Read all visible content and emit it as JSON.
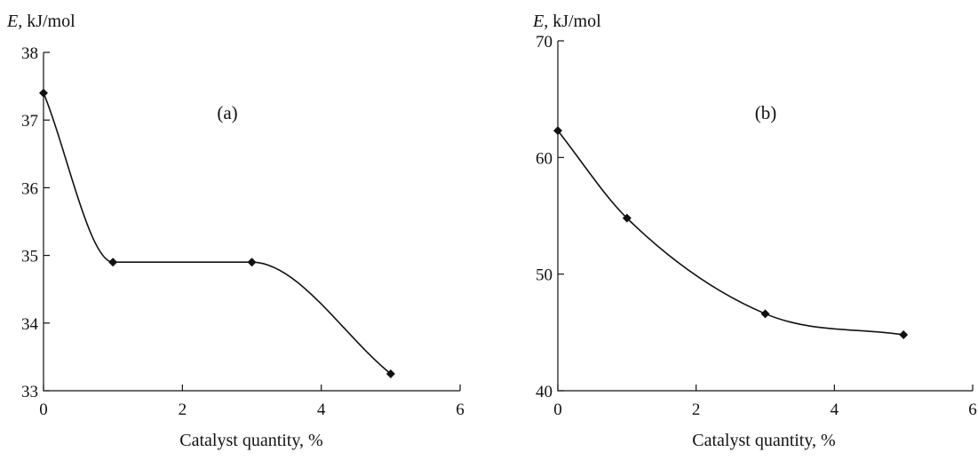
{
  "chart_data": [
    {
      "type": "line",
      "panel_label": "(a)",
      "ylabel_var": "E,",
      "ylabel_unit": " kJ/mol",
      "xlabel": "Catalyst quantity, %",
      "xlim": [
        0,
        6
      ],
      "ylim": [
        33,
        38
      ],
      "xticks": [
        "0",
        "2",
        "4",
        "6"
      ],
      "yticks": [
        "33",
        "34",
        "35",
        "36",
        "37",
        "38"
      ],
      "series": [
        {
          "x": [
            0,
            1,
            3,
            5
          ],
          "y": [
            37.4,
            34.9,
            34.9,
            33.25
          ]
        }
      ]
    },
    {
      "type": "line",
      "panel_label": "(b)",
      "ylabel_var": "E,",
      "ylabel_unit": " kJ/mol",
      "xlabel": "Catalyst quantity, %",
      "xlim": [
        0,
        6
      ],
      "ylim": [
        40,
        70
      ],
      "xticks": [
        "0",
        "2",
        "4",
        "6"
      ],
      "yticks": [
        "40",
        "50",
        "60",
        "70"
      ],
      "series": [
        {
          "x": [
            0,
            1,
            3,
            5
          ],
          "y": [
            62.3,
            54.8,
            46.6,
            44.8
          ]
        }
      ]
    }
  ]
}
